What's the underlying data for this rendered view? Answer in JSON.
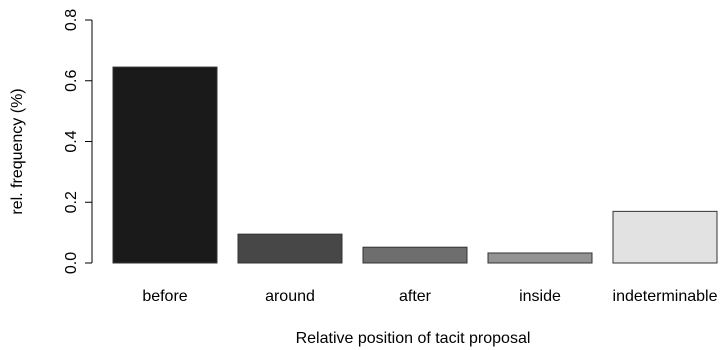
{
  "chart_data": {
    "type": "bar",
    "categories": [
      "before",
      "around",
      "after",
      "inside",
      "indeterminable"
    ],
    "values": [
      0.645,
      0.095,
      0.052,
      0.033,
      0.17
    ],
    "colors": [
      "#1a1a1a",
      "#474747",
      "#6e6e6e",
      "#939393",
      "#e2e2e2"
    ],
    "title": "",
    "xlabel": "Relative position of tacit proposal",
    "ylabel": "rel. frequency (%)",
    "ylim": [
      0,
      0.8
    ],
    "yticks": [
      "0.0",
      "0.2",
      "0.4",
      "0.6",
      "0.8"
    ],
    "grid": false,
    "legend": "none"
  }
}
